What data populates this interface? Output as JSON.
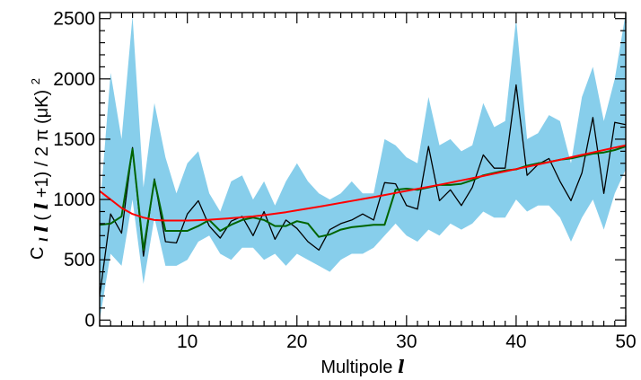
{
  "chart_data": {
    "type": "line",
    "xlabel": {
      "text": "Multipole",
      "symbol": "l"
    },
    "ylabel": {
      "prefix": "C",
      "sub": "l",
      "mid1": " ",
      "sym1": "l",
      "mid2": " (",
      "sym2": "l",
      "suffix": "+1) / 2 π  (μK)",
      "sup": "2"
    },
    "xlim": [
      2,
      50
    ],
    "ylim": [
      -50,
      2550
    ],
    "x_major_ticks": [
      10,
      20,
      30,
      40,
      50
    ],
    "y_major_ticks": [
      0,
      500,
      1000,
      1500,
      2000,
      2500
    ],
    "x_tick_labels": [
      "10",
      "20",
      "30",
      "40",
      "50"
    ],
    "y_tick_labels": [
      "0",
      "500",
      "1000",
      "1500",
      "2000",
      "2500"
    ],
    "grid": false,
    "legend": "none",
    "x": [
      2,
      3,
      4,
      5,
      6,
      7,
      8,
      9,
      10,
      11,
      12,
      13,
      14,
      15,
      16,
      17,
      18,
      19,
      20,
      21,
      22,
      23,
      24,
      25,
      26,
      27,
      28,
      29,
      30,
      31,
      32,
      33,
      34,
      35,
      36,
      37,
      38,
      39,
      40,
      41,
      42,
      43,
      44,
      45,
      46,
      47,
      48,
      49,
      50
    ],
    "series": [
      {
        "kind": "band",
        "color": "#87ceeb",
        "lower": [
          0,
          550,
          450,
          1000,
          300,
          850,
          450,
          450,
          500,
          650,
          700,
          550,
          500,
          600,
          600,
          500,
          550,
          450,
          550,
          500,
          450,
          400,
          500,
          550,
          550,
          600,
          700,
          800,
          700,
          650,
          750,
          700,
          800,
          750,
          800,
          900,
          850,
          850,
          1000,
          900,
          950,
          950,
          850,
          650,
          850,
          1000,
          750,
          1050,
          1250
        ],
        "upper": [
          900,
          2050,
          1500,
          2520,
          1100,
          1800,
          1350,
          1050,
          1300,
          1400,
          1050,
          900,
          1150,
          1200,
          1000,
          1150,
          950,
          1150,
          1300,
          1150,
          1050,
          1000,
          1050,
          1150,
          1050,
          1050,
          1500,
          1450,
          1350,
          1300,
          1850,
          1450,
          1500,
          1400,
          1450,
          1800,
          1600,
          1650,
          2500,
          1500,
          1550,
          1700,
          1650,
          1300,
          1850,
          2100,
          1650,
          2000,
          2550
        ]
      },
      {
        "kind": "line",
        "color": "#000000",
        "values": [
          200,
          880,
          720,
          1430,
          530,
          1170,
          650,
          640,
          880,
          990,
          780,
          680,
          820,
          860,
          700,
          900,
          670,
          830,
          760,
          650,
          580,
          750,
          800,
          830,
          880,
          830,
          1140,
          1130,
          950,
          920,
          1440,
          990,
          1080,
          950,
          1100,
          1370,
          1260,
          1260,
          1950,
          1200,
          1290,
          1340,
          1150,
          990,
          1220,
          1680,
          1050,
          1640,
          1620
        ]
      },
      {
        "kind": "line",
        "color": "#006400",
        "values": [
          790,
          800,
          860,
          1420,
          580,
          1160,
          740,
          740,
          740,
          780,
          830,
          740,
          790,
          830,
          850,
          830,
          780,
          780,
          820,
          800,
          690,
          710,
          750,
          770,
          780,
          790,
          790,
          1080,
          1090,
          1080,
          1100,
          1120,
          1120,
          1130,
          1160,
          1200,
          1220,
          1240,
          1250,
          1280,
          1300,
          1310,
          1330,
          1340,
          1360,
          1380,
          1390,
          1410,
          1440
        ]
      },
      {
        "kind": "line",
        "color": "#ff0000",
        "values": [
          1070,
          1000,
          930,
          880,
          850,
          830,
          825,
          825,
          825,
          828,
          832,
          838,
          845,
          852,
          860,
          870,
          882,
          895,
          910,
          925,
          940,
          956,
          972,
          988,
          1004,
          1020,
          1037,
          1054,
          1071,
          1088,
          1105,
          1122,
          1140,
          1158,
          1176,
          1195,
          1214,
          1233,
          1252,
          1271,
          1290,
          1310,
          1330,
          1350,
          1370,
          1390,
          1410,
          1430,
          1450
        ]
      }
    ]
  }
}
